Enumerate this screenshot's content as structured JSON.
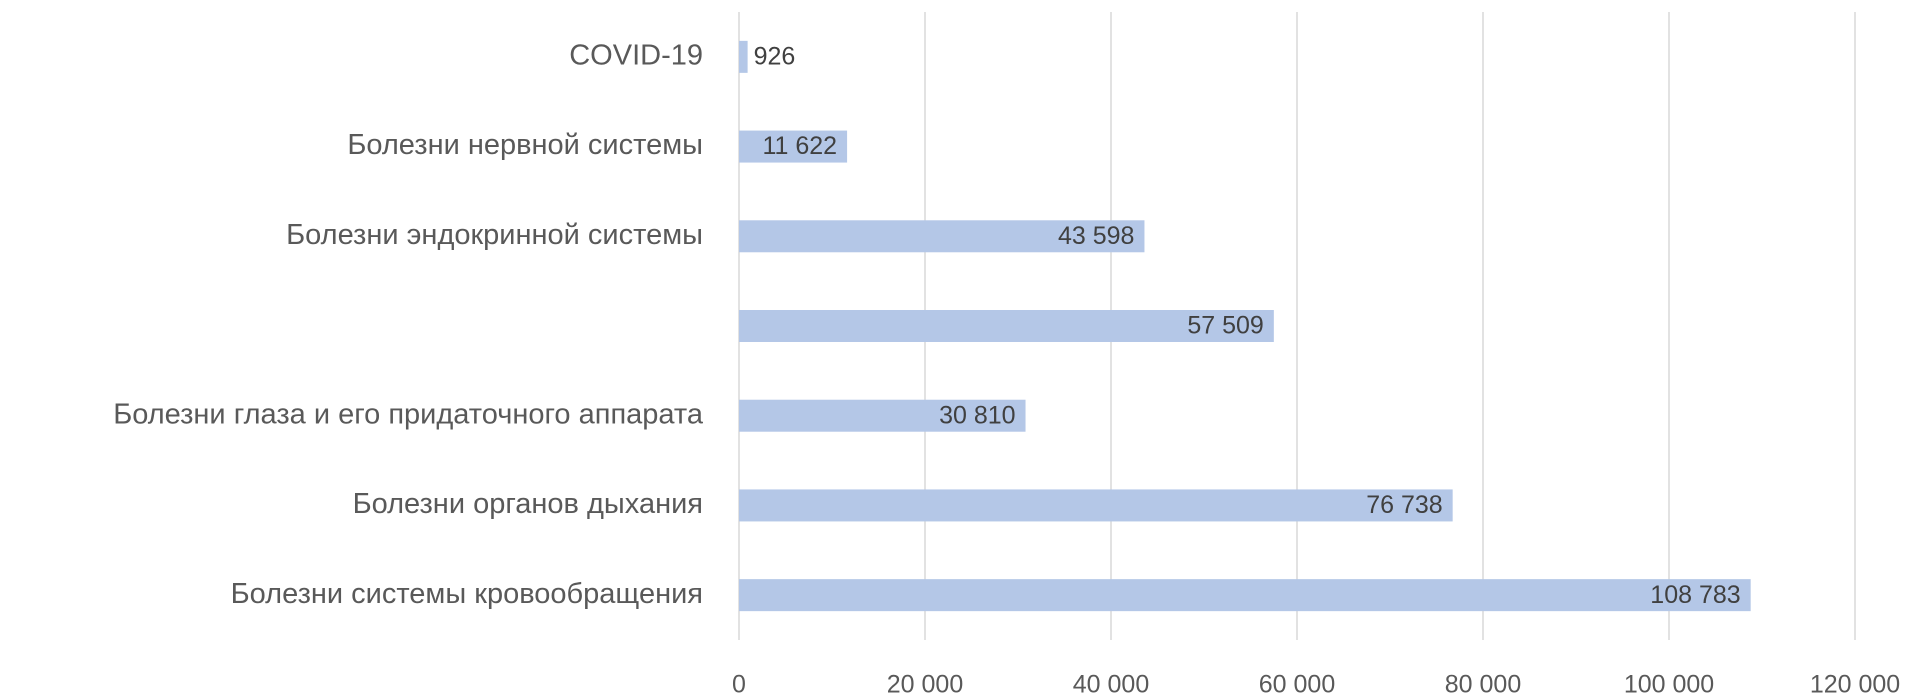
{
  "chart_data": {
    "type": "barh",
    "categories": [
      "COVID-19",
      "Болезни нервной системы",
      "Болезни эндокринной системы",
      null,
      "Болезни глаза и его придаточного аппарата",
      "Болезни органов дыхания",
      "Болезни системы кровообращения"
    ],
    "values": [
      926,
      11622,
      43598,
      57509,
      30810,
      76738,
      108783
    ],
    "value_labels": [
      "926",
      "11 622",
      "43 598",
      "57 509",
      "30 810",
      "76 738",
      "108 783"
    ],
    "color": "#b4c7e7",
    "xlim": [
      0,
      120000
    ],
    "xticks": [
      0,
      {
        "value": 20000,
        "label": "20 000"
      },
      {
        "value": 40000,
        "label": "40 000"
      },
      {
        "value": 60000,
        "label": "60 000"
      },
      {
        "value": 80000,
        "label": "80 000"
      },
      {
        "value": 100000,
        "label": "100 000"
      },
      {
        "value": 120000,
        "label": "120 000"
      }
    ],
    "grid": true
  }
}
